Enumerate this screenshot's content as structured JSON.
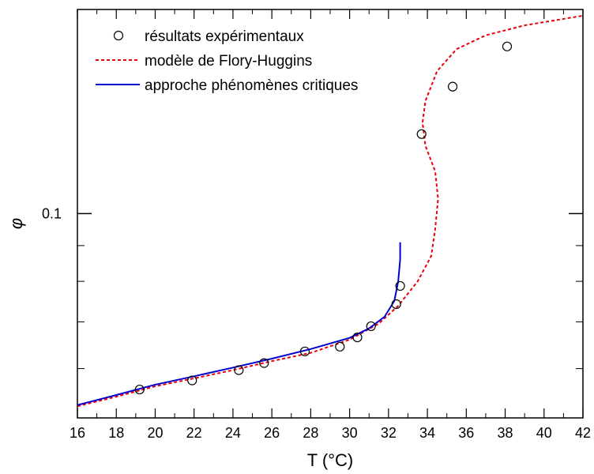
{
  "chart_data": {
    "type": "line",
    "xlabel": "T (°C)",
    "ylabel": "φ",
    "xlim": [
      16,
      42
    ],
    "ylim": [
      0.051,
      0.196
    ],
    "yscale": "log",
    "x_ticks": [
      "16",
      "18",
      "20",
      "22",
      "24",
      "26",
      "28",
      "30",
      "32",
      "34",
      "36",
      "38",
      "40",
      "42"
    ],
    "y_tick_labels": [
      "0.1"
    ],
    "legend": {
      "position": "top-left",
      "entries": [
        "résultats expérimentaux",
        "modèle de Flory-Huggins",
        "approche phénomènes critiques"
      ]
    },
    "grid": false,
    "series": [
      {
        "name": "résultats expérimentaux",
        "style": "open-circle",
        "color": "#000000",
        "points": [
          [
            19.2,
            0.056
          ],
          [
            21.9,
            0.0577
          ],
          [
            24.3,
            0.0597
          ],
          [
            25.6,
            0.0611
          ],
          [
            27.7,
            0.0635
          ],
          [
            29.5,
            0.0645
          ],
          [
            30.4,
            0.0665
          ],
          [
            31.1,
            0.069
          ],
          [
            32.4,
            0.0742
          ],
          [
            32.6,
            0.0788
          ],
          [
            33.7,
            0.13
          ],
          [
            35.3,
            0.152
          ],
          [
            38.1,
            0.1735
          ]
        ]
      },
      {
        "name": "modèle de Flory-Huggins",
        "style": "dashed",
        "color": "#e8000b",
        "points": [
          [
            16.0,
            0.053
          ],
          [
            18.0,
            0.0547
          ],
          [
            20.0,
            0.0566
          ],
          [
            22.0,
            0.0581
          ],
          [
            24.0,
            0.0597
          ],
          [
            26.0,
            0.0615
          ],
          [
            28.0,
            0.0632
          ],
          [
            30.0,
            0.066
          ],
          [
            31.5,
            0.0696
          ],
          [
            32.5,
            0.0738
          ],
          [
            33.5,
            0.08
          ],
          [
            34.2,
            0.087
          ],
          [
            34.4,
            0.095
          ],
          [
            34.55,
            0.105
          ],
          [
            34.4,
            0.115
          ],
          [
            33.9,
            0.125
          ],
          [
            33.75,
            0.135
          ],
          [
            33.9,
            0.145
          ],
          [
            34.5,
            0.16
          ],
          [
            35.5,
            0.172
          ],
          [
            37.0,
            0.18
          ],
          [
            39.0,
            0.186
          ],
          [
            41.0,
            0.19
          ],
          [
            42.0,
            0.192
          ]
        ]
      },
      {
        "name": "approche phénomènes critiques",
        "style": "solid",
        "color": "#0000d0",
        "points": [
          [
            16.0,
            0.0532
          ],
          [
            18.0,
            0.055
          ],
          [
            20.0,
            0.0569
          ],
          [
            22.0,
            0.0585
          ],
          [
            24.0,
            0.0602
          ],
          [
            26.0,
            0.062
          ],
          [
            28.0,
            0.064
          ],
          [
            30.0,
            0.0664
          ],
          [
            31.0,
            0.0685
          ],
          [
            31.8,
            0.0712
          ],
          [
            32.3,
            0.075
          ],
          [
            32.5,
            0.08
          ],
          [
            32.6,
            0.086
          ],
          [
            32.6,
            0.091
          ]
        ]
      }
    ]
  }
}
